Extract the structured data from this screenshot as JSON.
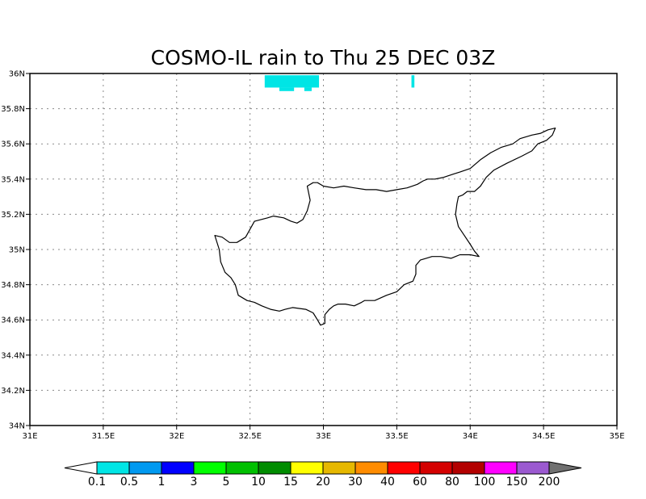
{
  "title": "COSMO-IL rain to Thu 25 DEC 03Z",
  "map": {
    "lon_range": [
      31,
      35
    ],
    "lat_range": [
      34,
      36
    ],
    "x_ticks": [
      {
        "v": 31,
        "label": "31E"
      },
      {
        "v": 31.5,
        "label": "31.5E"
      },
      {
        "v": 32,
        "label": "32E"
      },
      {
        "v": 32.5,
        "label": "32.5E"
      },
      {
        "v": 33,
        "label": "33E"
      },
      {
        "v": 33.5,
        "label": "33.5E"
      },
      {
        "v": 34,
        "label": "34E"
      },
      {
        "v": 34.5,
        "label": "34.5E"
      },
      {
        "v": 35,
        "label": "35E"
      }
    ],
    "y_ticks": [
      {
        "v": 34,
        "label": "34N"
      },
      {
        "v": 34.2,
        "label": "34.2N"
      },
      {
        "v": 34.4,
        "label": "34.4N"
      },
      {
        "v": 34.6,
        "label": "34.6N"
      },
      {
        "v": 34.8,
        "label": "34.8N"
      },
      {
        "v": 35,
        "label": "35N"
      },
      {
        "v": 35.2,
        "label": "35.2N"
      },
      {
        "v": 35.4,
        "label": "35.4N"
      },
      {
        "v": 35.6,
        "label": "35.6N"
      },
      {
        "v": 35.8,
        "label": "35.8N"
      },
      {
        "v": 36,
        "label": "36N"
      }
    ],
    "grid": true,
    "coastline": [
      [
        32.26,
        35.08
      ],
      [
        32.31,
        35.07
      ],
      [
        32.36,
        35.04
      ],
      [
        32.41,
        35.04
      ],
      [
        32.47,
        35.07
      ],
      [
        32.53,
        35.16
      ],
      [
        32.62,
        35.18
      ],
      [
        32.66,
        35.19
      ],
      [
        32.73,
        35.18
      ],
      [
        32.78,
        35.16
      ],
      [
        32.82,
        35.15
      ],
      [
        32.86,
        35.17
      ],
      [
        32.89,
        35.22
      ],
      [
        32.91,
        35.28
      ],
      [
        32.89,
        35.36
      ],
      [
        32.93,
        35.38
      ],
      [
        32.96,
        35.38
      ],
      [
        33.0,
        35.36
      ],
      [
        33.07,
        35.35
      ],
      [
        33.14,
        35.36
      ],
      [
        33.21,
        35.35
      ],
      [
        33.29,
        35.34
      ],
      [
        33.36,
        35.34
      ],
      [
        33.43,
        35.33
      ],
      [
        33.5,
        35.34
      ],
      [
        33.57,
        35.35
      ],
      [
        33.64,
        35.37
      ],
      [
        33.68,
        35.39
      ],
      [
        33.71,
        35.4
      ],
      [
        33.76,
        35.4
      ],
      [
        33.82,
        35.41
      ],
      [
        33.89,
        35.43
      ],
      [
        33.93,
        35.44
      ],
      [
        34.0,
        35.46
      ],
      [
        34.07,
        35.51
      ],
      [
        34.14,
        35.55
      ],
      [
        34.21,
        35.58
      ],
      [
        34.29,
        35.6
      ],
      [
        34.34,
        35.63
      ],
      [
        34.42,
        35.65
      ],
      [
        34.48,
        35.66
      ],
      [
        34.53,
        35.68
      ],
      [
        34.58,
        35.69
      ],
      [
        34.56,
        35.65
      ],
      [
        34.52,
        35.62
      ],
      [
        34.46,
        35.6
      ],
      [
        34.42,
        35.56
      ],
      [
        34.35,
        35.53
      ],
      [
        34.25,
        35.49
      ],
      [
        34.16,
        35.45
      ],
      [
        34.11,
        35.41
      ],
      [
        34.07,
        35.36
      ],
      [
        34.03,
        35.33
      ],
      [
        33.98,
        35.33
      ],
      [
        33.95,
        35.31
      ],
      [
        33.92,
        35.3
      ],
      [
        33.91,
        35.26
      ],
      [
        33.9,
        35.2
      ],
      [
        33.92,
        35.13
      ],
      [
        33.96,
        35.08
      ],
      [
        34.0,
        35.03
      ],
      [
        34.03,
        34.99
      ],
      [
        34.06,
        34.96
      ],
      [
        34.0,
        34.97
      ],
      [
        33.93,
        34.97
      ],
      [
        33.9,
        34.96
      ],
      [
        33.87,
        34.95
      ],
      [
        33.8,
        34.96
      ],
      [
        33.74,
        34.96
      ],
      [
        33.7,
        34.95
      ],
      [
        33.66,
        34.94
      ],
      [
        33.63,
        34.91
      ],
      [
        33.63,
        34.86
      ],
      [
        33.61,
        34.82
      ],
      [
        33.55,
        34.8
      ],
      [
        33.5,
        34.76
      ],
      [
        33.43,
        34.74
      ],
      [
        33.35,
        34.71
      ],
      [
        33.28,
        34.71
      ],
      [
        33.26,
        34.7
      ],
      [
        33.21,
        34.68
      ],
      [
        33.15,
        34.69
      ],
      [
        33.1,
        34.69
      ],
      [
        33.07,
        34.68
      ],
      [
        33.04,
        34.66
      ],
      [
        33.01,
        34.63
      ],
      [
        33.01,
        34.58
      ],
      [
        32.98,
        34.57
      ],
      [
        32.96,
        34.6
      ],
      [
        32.93,
        34.64
      ],
      [
        32.88,
        34.66
      ],
      [
        32.79,
        34.67
      ],
      [
        32.74,
        34.66
      ],
      [
        32.7,
        34.65
      ],
      [
        32.64,
        34.66
      ],
      [
        32.58,
        34.68
      ],
      [
        32.53,
        34.7
      ],
      [
        32.48,
        34.71
      ],
      [
        32.42,
        34.74
      ],
      [
        32.4,
        34.8
      ],
      [
        32.37,
        34.84
      ],
      [
        32.33,
        34.87
      ],
      [
        32.3,
        34.93
      ],
      [
        32.29,
        35.0
      ],
      [
        32.26,
        35.08
      ]
    ],
    "rain_cells": [
      {
        "lon0": 32.6,
        "lon1": 32.97,
        "lat0": 35.92,
        "lat1": 35.99,
        "color": "#00e5e5"
      },
      {
        "lon0": 32.7,
        "lon1": 32.8,
        "lat0": 35.9,
        "lat1": 35.92,
        "color": "#00e5e5"
      },
      {
        "lon0": 32.87,
        "lon1": 32.92,
        "lat0": 35.9,
        "lat1": 35.92,
        "color": "#00e5e5"
      },
      {
        "lon0": 33.6,
        "lon1": 33.62,
        "lat0": 35.92,
        "lat1": 35.99,
        "color": "#00e5e5"
      }
    ]
  },
  "colorbar": {
    "labels": [
      "0.1",
      "0.5",
      "1",
      "3",
      "5",
      "10",
      "15",
      "20",
      "30",
      "40",
      "60",
      "80",
      "100",
      "150",
      "200"
    ],
    "colors": [
      "#00e5e5",
      "#0099f0",
      "#0000ff",
      "#00ff00",
      "#00c000",
      "#008c00",
      "#ffff00",
      "#e6b800",
      "#ff8c00",
      "#ff0000",
      "#d40000",
      "#b30000",
      "#ff00ff",
      "#9b59d0"
    ],
    "under_color": "#ffffff",
    "over_color": "#707070"
  }
}
